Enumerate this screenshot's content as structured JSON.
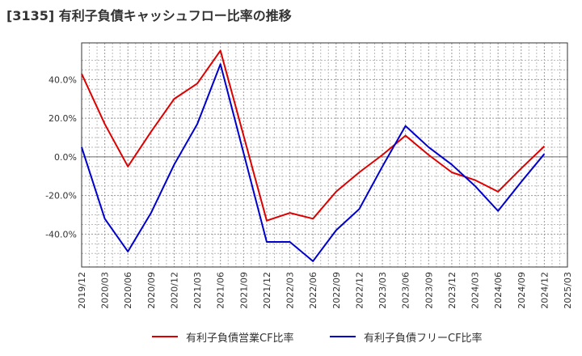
{
  "chart_data": {
    "type": "line",
    "title": "[3135]  有利子負債キャッシュフロー比率の推移",
    "x": [
      "2019/12",
      "2020/03",
      "2020/06",
      "2020/09",
      "2020/12",
      "2021/03",
      "2021/06",
      "2021/09",
      "2021/12",
      "2022/03",
      "2022/06",
      "2022/09",
      "2022/12",
      "2023/03",
      "2023/06",
      "2023/09",
      "2023/12",
      "2024/03",
      "2024/06",
      "2024/09",
      "2024/12",
      "2025/03"
    ],
    "ylim": [
      -57,
      59
    ],
    "yticks": [
      40,
      20,
      0,
      -20,
      -40
    ],
    "ytick_labels": [
      "40.0%",
      "20.0%",
      "0.0%",
      "-20.0%",
      "-40.0%"
    ],
    "grid": true,
    "legend_position": "bottom",
    "series": [
      {
        "name": "有利子負債営業CF比率",
        "color": "#dd0000",
        "points": [
          {
            "x": "2019/12",
            "y": 43
          },
          {
            "x": "2020/03",
            "y": 17
          },
          {
            "x": "2020/06",
            "y": -5
          },
          {
            "x": "2020/09",
            "y": 13
          },
          {
            "x": "2020/12",
            "y": 30
          },
          {
            "x": "2021/03",
            "y": 38
          },
          {
            "x": "2021/06",
            "y": 55
          },
          {
            "x": "2021/12",
            "y": -33
          },
          {
            "x": "2022/03",
            "y": -29
          },
          {
            "x": "2022/06",
            "y": -32
          },
          {
            "x": "2022/09",
            "y": -18
          },
          {
            "x": "2022/12",
            "y": -8
          },
          {
            "x": "2023/03",
            "y": 1
          },
          {
            "x": "2023/06",
            "y": 11
          },
          {
            "x": "2023/09",
            "y": 1
          },
          {
            "x": "2023/12",
            "y": -8
          },
          {
            "x": "2024/03",
            "y": -12
          },
          {
            "x": "2024/06",
            "y": -18
          },
          {
            "x": "2024/09",
            "y": -6
          },
          {
            "x": "2024/12",
            "y": 5.5
          }
        ]
      },
      {
        "name": "有利子負債フリーCF比率",
        "color": "#0000cc",
        "points": [
          {
            "x": "2019/12",
            "y": 5
          },
          {
            "x": "2020/03",
            "y": -32
          },
          {
            "x": "2020/06",
            "y": -49
          },
          {
            "x": "2020/09",
            "y": -29
          },
          {
            "x": "2020/12",
            "y": -4
          },
          {
            "x": "2021/03",
            "y": 17
          },
          {
            "x": "2021/06",
            "y": 48
          },
          {
            "x": "2021/12",
            "y": -44
          },
          {
            "x": "2022/03",
            "y": -44
          },
          {
            "x": "2022/06",
            "y": -54
          },
          {
            "x": "2022/09",
            "y": -38
          },
          {
            "x": "2022/12",
            "y": -27
          },
          {
            "x": "2023/03",
            "y": -5
          },
          {
            "x": "2023/06",
            "y": 16
          },
          {
            "x": "2023/09",
            "y": 5
          },
          {
            "x": "2023/12",
            "y": -4
          },
          {
            "x": "2024/03",
            "y": -15
          },
          {
            "x": "2024/06",
            "y": -28
          },
          {
            "x": "2024/09",
            "y": -13
          },
          {
            "x": "2024/12",
            "y": 1.5
          }
        ]
      }
    ]
  }
}
